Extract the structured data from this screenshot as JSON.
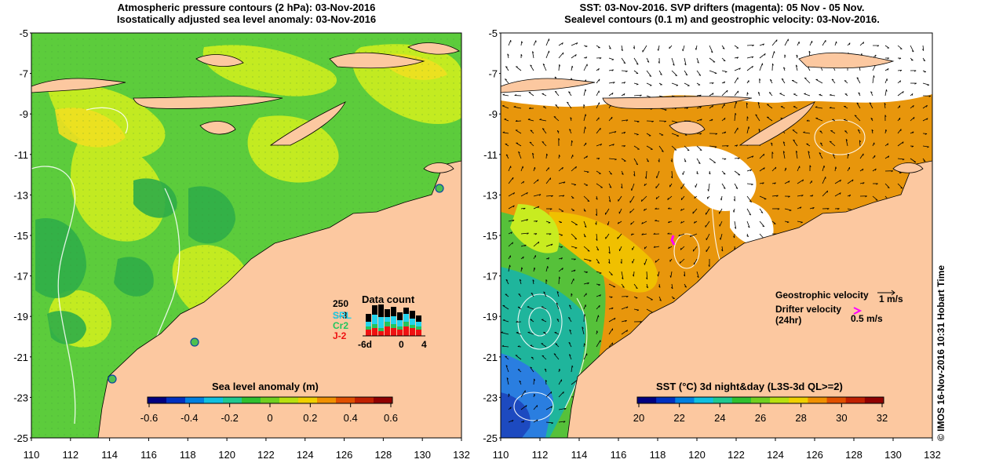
{
  "left_panel": {
    "title_lines": [
      "Atmospheric pressure contours (2 hPa): 03-Nov-2016",
      "Isostatically adjusted sea level anomaly: 03-Nov-2016"
    ],
    "y_ticks": [
      "-5",
      "-7",
      "-9",
      "-11",
      "-13",
      "-15",
      "-17",
      "-19",
      "-21",
      "-23",
      "-25"
    ],
    "x_ticks": [
      "110",
      "112",
      "114",
      "116",
      "118",
      "120",
      "122",
      "124",
      "126",
      "128",
      "130",
      "132"
    ],
    "data_count": {
      "title": "Data count",
      "top_label": "250",
      "satellites": [
        {
          "name": "S-3",
          "color": "#000000"
        },
        {
          "name": "SRL",
          "color": "#22d3ee"
        },
        {
          "name": "Cr2",
          "color": "#22c55e"
        },
        {
          "name": "J-2",
          "color": "#ee1111"
        }
      ],
      "axis_labels": [
        "-6d",
        "0",
        "4"
      ]
    },
    "colorbar": {
      "title": "Sea level anomaly (m)",
      "ticks": [
        "-0.6",
        "-0.4",
        "-0.2",
        "0",
        "0.2",
        "0.4",
        "0.6"
      ],
      "colors": [
        "#000080",
        "#0030c0",
        "#0080e0",
        "#10c0e0",
        "#20c890",
        "#30c030",
        "#70d020",
        "#b8e010",
        "#f0d000",
        "#f09000",
        "#e05000",
        "#c02000",
        "#900000"
      ]
    }
  },
  "right_panel": {
    "title_lines": [
      "SST: 03-Nov-2016. SVP drifters (magenta): 05 Nov - 05 Nov.",
      "Sealevel contours (0.1 m) and geostrophic velocity: 03-Nov-2016."
    ],
    "y_ticks": [
      "-5",
      "-7",
      "-9",
      "-11",
      "-13",
      "-15",
      "-17",
      "-19",
      "-21",
      "-23",
      "-25"
    ],
    "x_ticks": [
      "110",
      "112",
      "114",
      "116",
      "118",
      "120",
      "122",
      "124",
      "126",
      "128",
      "130",
      "132"
    ],
    "legend": {
      "geostrophic_label": "Geostrophic velocity",
      "geostrophic_scale": "1 m/s",
      "drifter_label_line1": "Drifter velocity",
      "drifter_label_line2": "(24hr)",
      "drifter_scale": "0.5 m/s"
    },
    "colorbar": {
      "title": "SST (°C) 3d night&day (L3S-3d QL>=2)",
      "ticks": [
        "20",
        "22",
        "24",
        "26",
        "28",
        "30",
        "32"
      ],
      "colors": [
        "#000080",
        "#0030c0",
        "#0080e0",
        "#10c0e0",
        "#20c890",
        "#30c030",
        "#70d020",
        "#b8e010",
        "#f0d000",
        "#f09000",
        "#e05000",
        "#c02000",
        "#900000"
      ]
    }
  },
  "credit": "© IMOS 16-Nov-2016 10:31 Hobart Time",
  "colors": {
    "land": "#fcc8a0",
    "sla_green": "#5ccc3c",
    "sla_yellow": "#c8ec20",
    "sst_orange": "#e8960c",
    "sst_blue": "#2a7ee0",
    "drifter": "#ff00ff"
  }
}
